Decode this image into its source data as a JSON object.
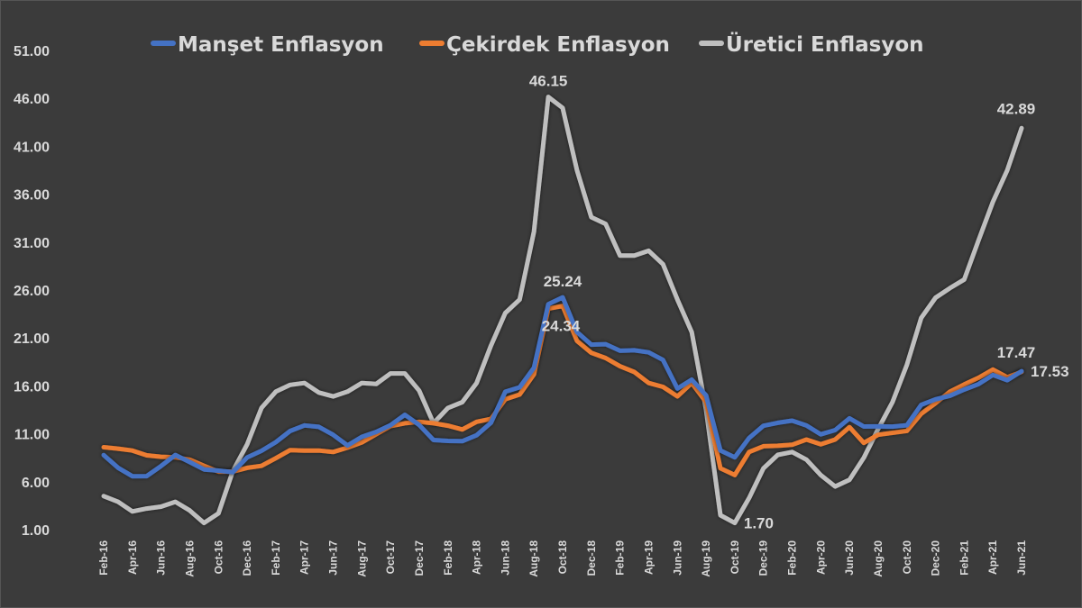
{
  "chart_data": {
    "type": "line",
    "title": "",
    "xlabel": "",
    "ylabel": "",
    "ylim": [
      1.0,
      51.0
    ],
    "yticks": [
      "1.00",
      "6.00",
      "11.00",
      "16.00",
      "21.00",
      "26.00",
      "31.00",
      "36.00",
      "41.00",
      "46.00",
      "51.00"
    ],
    "x": [
      "Feb-16",
      "Mar-16",
      "Apr-16",
      "May-16",
      "Jun-16",
      "Jul-16",
      "Aug-16",
      "Sep-16",
      "Oct-16",
      "Nov-16",
      "Dec-16",
      "Jan-17",
      "Feb-17",
      "Mar-17",
      "Apr-17",
      "May-17",
      "Jun-17",
      "Jul-17",
      "Aug-17",
      "Sep-17",
      "Oct-17",
      "Nov-17",
      "Dec-17",
      "Jan-18",
      "Feb-18",
      "Mar-18",
      "Apr-18",
      "May-18",
      "Jun-18",
      "Jul-18",
      "Aug-18",
      "Sep-18",
      "Oct-18",
      "Nov-18",
      "Dec-18",
      "Jan-19",
      "Feb-19",
      "Mar-19",
      "Apr-19",
      "May-19",
      "Jun-19",
      "Jul-19",
      "Aug-19",
      "Sep-19",
      "Oct-19",
      "Nov-19",
      "Dec-19",
      "Jan-20",
      "Feb-20",
      "Mar-20",
      "Apr-20",
      "May-20",
      "Jun-20",
      "Jul-20",
      "Aug-20",
      "Sep-20",
      "Oct-20",
      "Nov-20",
      "Dec-20",
      "Jan-21",
      "Feb-21",
      "Mar-21",
      "Apr-21",
      "May-21",
      "Jun-21"
    ],
    "xtick_labels": [
      "Feb-16",
      "Apr-16",
      "Jun-16",
      "Aug-16",
      "Oct-16",
      "Dec-16",
      "Feb-17",
      "Apr-17",
      "Jun-17",
      "Aug-17",
      "Oct-17",
      "Dec-17",
      "Feb-18",
      "Apr-18",
      "Jun-18",
      "Aug-18",
      "Oct-18",
      "Dec-18",
      "Feb-19",
      "Apr-19",
      "Jun-19",
      "Aug-19",
      "Oct-19",
      "Dec-19",
      "Feb-20",
      "Apr-20",
      "Jun-20",
      "Aug-20",
      "Oct-20",
      "Dec-20",
      "Feb-21",
      "Apr-21",
      "Jun-21"
    ],
    "legend_position": "top",
    "grid": false,
    "series": [
      {
        "name": "Manşet Enflasyon",
        "color": "#4472c4",
        "values": [
          8.78,
          7.46,
          6.57,
          6.58,
          7.64,
          8.79,
          8.05,
          7.28,
          7.16,
          7.0,
          8.53,
          9.22,
          10.13,
          11.29,
          11.87,
          11.72,
          10.9,
          9.79,
          10.68,
          11.2,
          11.9,
          12.98,
          11.92,
          10.35,
          10.26,
          10.23,
          10.85,
          12.15,
          15.39,
          15.85,
          17.9,
          24.52,
          25.24,
          21.62,
          20.3,
          20.35,
          19.67,
          19.71,
          19.5,
          18.71,
          15.72,
          16.65,
          15.01,
          9.26,
          8.55,
          10.56,
          11.84,
          12.15,
          12.37,
          11.86,
          10.94,
          11.39,
          12.62,
          11.76,
          11.77,
          11.75,
          11.89,
          14.03,
          14.6,
          14.97,
          15.61,
          16.19,
          17.14,
          16.59,
          17.53
        ]
      },
      {
        "name": "Çekirdek Enflasyon",
        "color": "#ed7d31",
        "values": [
          9.6,
          9.45,
          9.25,
          8.75,
          8.6,
          8.55,
          8.3,
          7.65,
          7.05,
          7.05,
          7.45,
          7.65,
          8.45,
          9.3,
          9.25,
          9.25,
          9.1,
          9.55,
          10.1,
          10.95,
          11.8,
          12.1,
          12.25,
          12.1,
          11.85,
          11.45,
          12.25,
          12.55,
          14.6,
          15.1,
          17.2,
          24.05,
          24.34,
          20.7,
          19.45,
          18.9,
          18.05,
          17.45,
          16.3,
          15.9,
          14.9,
          16.3,
          14.3,
          7.4,
          6.7,
          9.1,
          9.7,
          9.75,
          9.85,
          10.4,
          9.9,
          10.4,
          11.7,
          10.05,
          10.9,
          11.1,
          11.3,
          13.1,
          14.2,
          15.4,
          16.15,
          16.85,
          17.7,
          16.9,
          17.47
        ]
      },
      {
        "name": "Üretici Enflasyon",
        "color": "#bfbfbf",
        "values": [
          4.5,
          3.9,
          2.9,
          3.2,
          3.4,
          3.9,
          3.0,
          1.7,
          2.7,
          7.1,
          9.9,
          13.7,
          15.4,
          16.1,
          16.3,
          15.3,
          14.9,
          15.4,
          16.3,
          16.2,
          17.3,
          17.3,
          15.5,
          12.1,
          13.7,
          14.3,
          16.3,
          20.2,
          23.6,
          25.0,
          32.1,
          46.15,
          45.0,
          38.5,
          33.6,
          32.9,
          29.6,
          29.6,
          30.1,
          28.7,
          25.0,
          21.6,
          13.5,
          2.5,
          1.7,
          4.3,
          7.4,
          8.8,
          9.1,
          8.3,
          6.7,
          5.5,
          6.2,
          8.5,
          11.5,
          14.3,
          18.2,
          23.1,
          25.2,
          26.2,
          27.1,
          31.2,
          35.2,
          38.5,
          42.89
        ]
      }
    ],
    "annotations": [
      {
        "text": "46.15",
        "series": 2,
        "index": 31,
        "pos": "above"
      },
      {
        "text": "25.24",
        "series": 0,
        "index": 32,
        "pos": "above"
      },
      {
        "text": "24.34",
        "series": 1,
        "index": 32,
        "pos": "below"
      },
      {
        "text": "1.70",
        "series": 2,
        "index": 44,
        "pos": "right"
      },
      {
        "text": "42.89",
        "series": 2,
        "index": 64,
        "pos": "above-left"
      },
      {
        "text": "17.47",
        "series": 1,
        "index": 64,
        "pos": "above-left"
      },
      {
        "text": "17.53",
        "series": 0,
        "index": 64,
        "pos": "right"
      }
    ]
  }
}
